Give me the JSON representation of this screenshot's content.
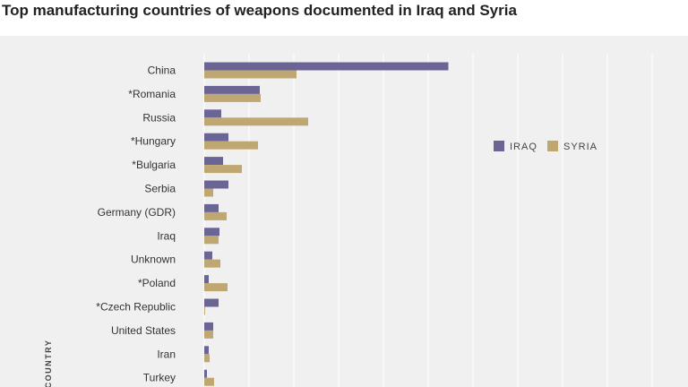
{
  "title": "Top manufacturing countries of weapons documented in Iraq and Syria",
  "chart_data": {
    "type": "bar",
    "orientation": "horizontal",
    "title": "Top manufacturing countries of weapons documented in Iraq and Syria",
    "xlabel": "",
    "ylabel": "COUNTRY",
    "categories": [
      "China",
      "*Romania",
      "Russia",
      "*Hungary",
      "*Bulgaria",
      "Serbia",
      "Germany (GDR)",
      "Iraq",
      "Unknown",
      "*Poland",
      "*Czech Republic",
      "United States",
      "Iran",
      "Turkey"
    ],
    "series": [
      {
        "name": "IRAQ",
        "color": "#6b6596",
        "values": [
          545,
          124,
          38,
          54,
          42,
          54,
          32,
          34,
          18,
          10,
          32,
          20,
          10,
          6
        ]
      },
      {
        "name": "SYRIA",
        "color": "#bfa772",
        "values": [
          206,
          126,
          232,
          120,
          84,
          20,
          50,
          32,
          36,
          52,
          2,
          20,
          12,
          22
        ]
      }
    ],
    "xlim": [
      0,
      1000
    ],
    "grid": true,
    "legend": "right",
    "colors": {
      "panel": "#f0f0f0",
      "grid": "#ffffff"
    }
  }
}
